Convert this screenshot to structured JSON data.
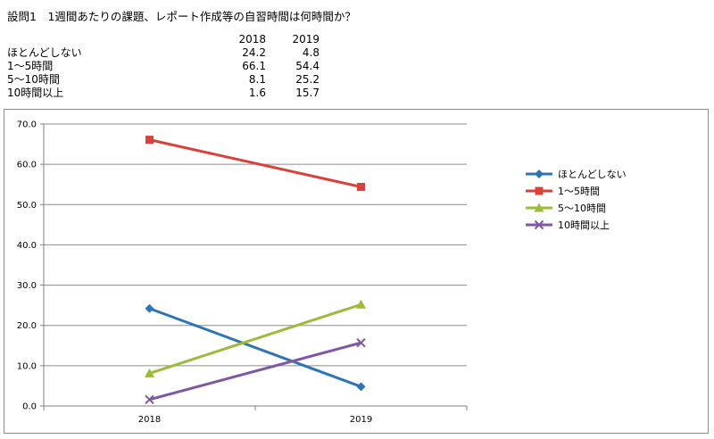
{
  "question": "設問1　1週間あたりの課題、レポート作成等の自習時間は何時間か？",
  "table": {
    "headers": [
      "2018",
      "2019"
    ],
    "rows": [
      {
        "label": "ほとんどしない",
        "values": [
          "24.2",
          "4.8"
        ]
      },
      {
        "label": "1～5時間",
        "values": [
          "66.1",
          "54.4"
        ]
      },
      {
        "label": "5～10時間",
        "values": [
          "8.1",
          "25.2"
        ]
      },
      {
        "label": "10時間以上",
        "values": [
          "1.6",
          "15.7"
        ]
      }
    ]
  },
  "chart_data": {
    "type": "line",
    "categories": [
      "2018",
      "2019"
    ],
    "ylim": [
      0,
      70
    ],
    "yticks": [
      "0.0",
      "10.0",
      "20.0",
      "30.0",
      "40.0",
      "50.0",
      "60.0",
      "70.0"
    ],
    "grid": true,
    "legend": "right",
    "series": [
      {
        "name": "ほとんどしない",
        "values": [
          24.2,
          4.8
        ],
        "color": "#2e75b6",
        "marker": "diamond"
      },
      {
        "name": "1～5時間",
        "values": [
          66.1,
          54.4
        ],
        "color": "#d9413a",
        "marker": "square"
      },
      {
        "name": "5～10時間",
        "values": [
          8.1,
          25.2
        ],
        "color": "#9bbb3b",
        "marker": "triangle"
      },
      {
        "name": "10時間以上",
        "values": [
          1.6,
          15.7
        ],
        "color": "#7f57a3",
        "marker": "x"
      }
    ]
  }
}
